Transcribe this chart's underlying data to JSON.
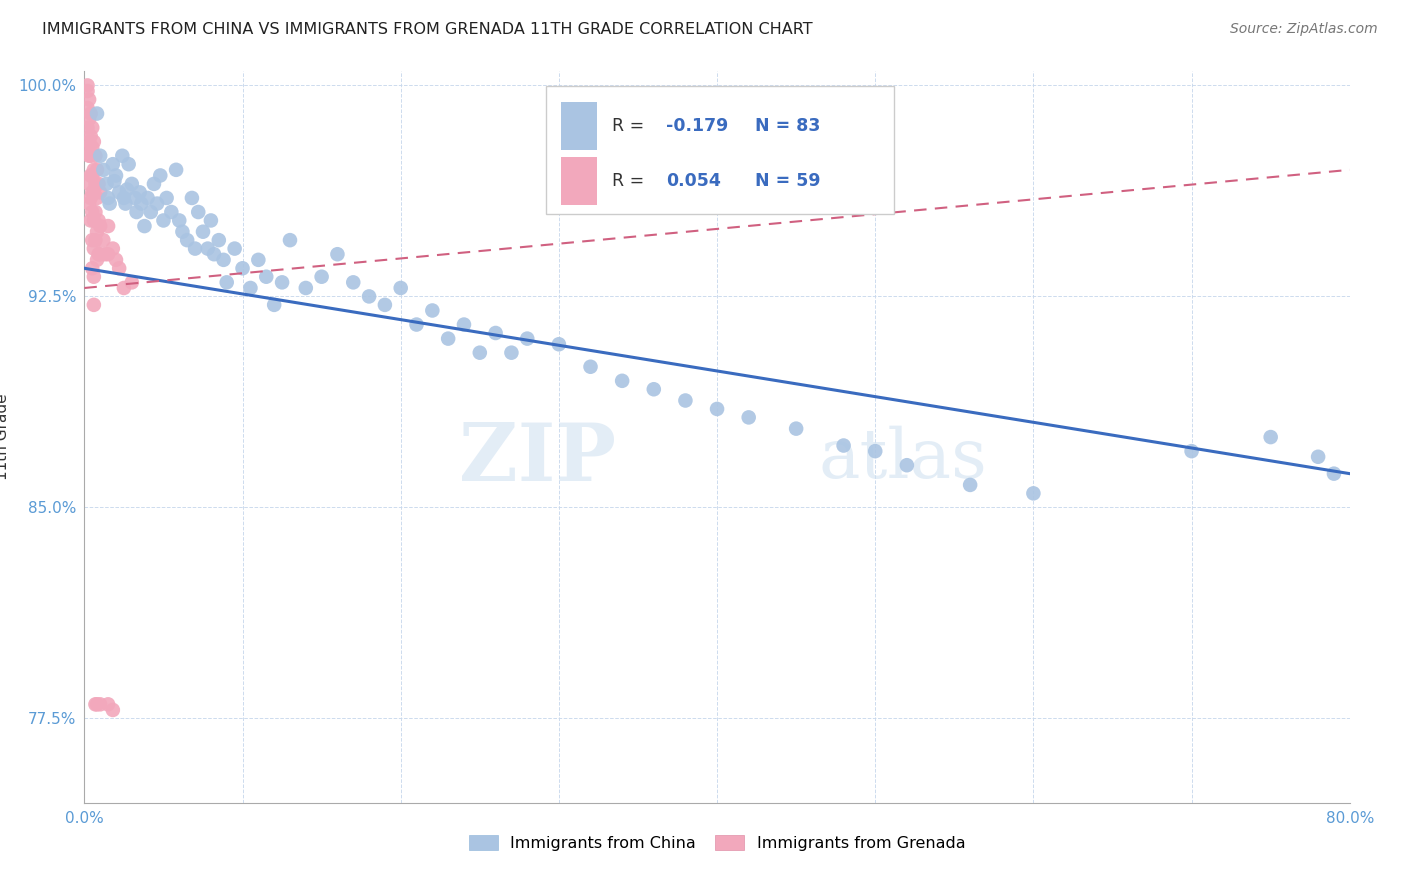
{
  "title": "IMMIGRANTS FROM CHINA VS IMMIGRANTS FROM GRENADA 11TH GRADE CORRELATION CHART",
  "source": "Source: ZipAtlas.com",
  "ylabel": "11th Grade",
  "xlim": [
    0.0,
    0.8
  ],
  "ylim": [
    0.745,
    1.005
  ],
  "xticks": [
    0.0,
    0.1,
    0.2,
    0.3,
    0.4,
    0.5,
    0.6,
    0.7,
    0.8
  ],
  "xticklabels": [
    "0.0%",
    "",
    "",
    "",
    "",
    "",
    "",
    "",
    "80.0%"
  ],
  "yticks": [
    0.775,
    0.85,
    0.925,
    1.0
  ],
  "yticklabels": [
    "77.5%",
    "85.0%",
    "92.5%",
    "100.0%"
  ],
  "china_R": -0.179,
  "china_N": 83,
  "grenada_R": 0.054,
  "grenada_N": 59,
  "china_color": "#aac4e2",
  "grenada_color": "#f2a8bc",
  "china_line_color": "#3a6bbf",
  "grenada_line_color": "#d06080",
  "watermark_zip": "ZIP",
  "watermark_atlas": "atlas",
  "legend_china_label": "Immigrants from China",
  "legend_grenada_label": "Immigrants from Grenada",
  "china_x": [
    0.008,
    0.01,
    0.012,
    0.014,
    0.015,
    0.016,
    0.018,
    0.019,
    0.02,
    0.022,
    0.024,
    0.025,
    0.026,
    0.027,
    0.028,
    0.03,
    0.032,
    0.033,
    0.035,
    0.036,
    0.038,
    0.04,
    0.042,
    0.044,
    0.046,
    0.048,
    0.05,
    0.052,
    0.055,
    0.058,
    0.06,
    0.062,
    0.065,
    0.068,
    0.07,
    0.072,
    0.075,
    0.078,
    0.08,
    0.082,
    0.085,
    0.088,
    0.09,
    0.095,
    0.1,
    0.105,
    0.11,
    0.115,
    0.12,
    0.125,
    0.13,
    0.14,
    0.15,
    0.16,
    0.17,
    0.18,
    0.19,
    0.2,
    0.21,
    0.22,
    0.23,
    0.24,
    0.25,
    0.26,
    0.27,
    0.28,
    0.3,
    0.32,
    0.34,
    0.36,
    0.38,
    0.4,
    0.42,
    0.45,
    0.48,
    0.5,
    0.52,
    0.56,
    0.6,
    0.7,
    0.75,
    0.78,
    0.79
  ],
  "china_y": [
    0.99,
    0.975,
    0.97,
    0.965,
    0.96,
    0.958,
    0.972,
    0.966,
    0.968,
    0.962,
    0.975,
    0.96,
    0.958,
    0.963,
    0.972,
    0.965,
    0.96,
    0.955,
    0.962,
    0.958,
    0.95,
    0.96,
    0.955,
    0.965,
    0.958,
    0.968,
    0.952,
    0.96,
    0.955,
    0.97,
    0.952,
    0.948,
    0.945,
    0.96,
    0.942,
    0.955,
    0.948,
    0.942,
    0.952,
    0.94,
    0.945,
    0.938,
    0.93,
    0.942,
    0.935,
    0.928,
    0.938,
    0.932,
    0.922,
    0.93,
    0.945,
    0.928,
    0.932,
    0.94,
    0.93,
    0.925,
    0.922,
    0.928,
    0.915,
    0.92,
    0.91,
    0.915,
    0.905,
    0.912,
    0.905,
    0.91,
    0.908,
    0.9,
    0.895,
    0.892,
    0.888,
    0.885,
    0.882,
    0.878,
    0.872,
    0.87,
    0.865,
    0.858,
    0.855,
    0.87,
    0.875,
    0.868,
    0.862
  ],
  "grenada_x": [
    0.002,
    0.002,
    0.002,
    0.002,
    0.002,
    0.003,
    0.003,
    0.003,
    0.003,
    0.003,
    0.003,
    0.004,
    0.004,
    0.004,
    0.004,
    0.004,
    0.004,
    0.005,
    0.005,
    0.005,
    0.005,
    0.005,
    0.005,
    0.005,
    0.006,
    0.006,
    0.006,
    0.006,
    0.006,
    0.006,
    0.006,
    0.007,
    0.007,
    0.007,
    0.007,
    0.007,
    0.008,
    0.008,
    0.008,
    0.008,
    0.008,
    0.009,
    0.009,
    0.009,
    0.01,
    0.01,
    0.01,
    0.01,
    0.012,
    0.013,
    0.015,
    0.015,
    0.015,
    0.018,
    0.018,
    0.02,
    0.022,
    0.025,
    0.03
  ],
  "grenada_y": [
    1.0,
    0.998,
    0.992,
    0.985,
    0.978,
    0.995,
    0.988,
    0.98,
    0.975,
    0.965,
    0.958,
    0.99,
    0.982,
    0.975,
    0.968,
    0.96,
    0.952,
    0.985,
    0.978,
    0.968,
    0.962,
    0.955,
    0.945,
    0.935,
    0.98,
    0.97,
    0.962,
    0.952,
    0.942,
    0.932,
    0.922,
    0.975,
    0.965,
    0.955,
    0.945,
    0.78,
    0.97,
    0.96,
    0.948,
    0.938,
    0.78,
    0.965,
    0.952,
    0.94,
    0.962,
    0.95,
    0.94,
    0.78,
    0.945,
    0.94,
    0.95,
    0.94,
    0.78,
    0.942,
    0.778,
    0.938,
    0.935,
    0.928,
    0.93
  ]
}
